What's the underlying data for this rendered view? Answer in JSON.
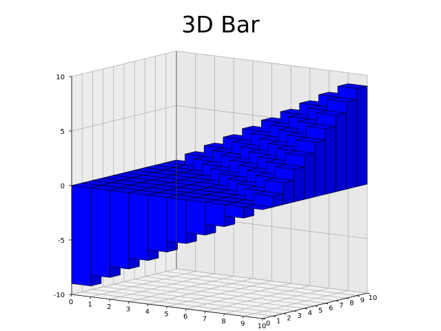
{
  "chart_data": {
    "type": "bar3d",
    "title": "3D Bar",
    "x_ticks": [
      "0",
      "1",
      "2",
      "3",
      "4",
      "5",
      "6",
      "7",
      "8",
      "9",
      "10"
    ],
    "y_ticks": [
      "0",
      "1",
      "2",
      "3",
      "4",
      "5",
      "6",
      "7",
      "8",
      "9",
      "10"
    ],
    "z_ticks": [
      "-10",
      "-5",
      "0",
      "5",
      "10"
    ],
    "xlim": [
      0,
      10
    ],
    "ylim": [
      0,
      10
    ],
    "zlim": [
      -10,
      10
    ],
    "grid": true,
    "bar_color": "#0000ff",
    "x": [
      0,
      1,
      2,
      3,
      4,
      5,
      6,
      7,
      8,
      9
    ],
    "y": [
      0,
      1,
      2,
      3,
      4,
      5,
      6,
      7,
      8,
      9
    ],
    "values": [
      [
        -9,
        -8,
        -7,
        -6,
        -5,
        -4,
        -3,
        -2,
        -1,
        0
      ],
      [
        -8,
        -7,
        -6,
        -5,
        -4,
        -3,
        -2,
        -1,
        0,
        1
      ],
      [
        -7,
        -6,
        -5,
        -4,
        -3,
        -2,
        -1,
        0,
        1,
        2
      ],
      [
        -6,
        -5,
        -4,
        -3,
        -2,
        -1,
        0,
        1,
        2,
        3
      ],
      [
        -5,
        -4,
        -3,
        -2,
        -1,
        0,
        1,
        2,
        3,
        4
      ],
      [
        -4,
        -3,
        -2,
        -1,
        0,
        1,
        2,
        3,
        4,
        5
      ],
      [
        -3,
        -2,
        -1,
        0,
        1,
        2,
        3,
        4,
        5,
        6
      ],
      [
        -2,
        -1,
        0,
        1,
        2,
        3,
        4,
        5,
        6,
        7
      ],
      [
        -1,
        0,
        1,
        2,
        3,
        4,
        5,
        6,
        7,
        8
      ],
      [
        0,
        1,
        2,
        3,
        4,
        5,
        6,
        7,
        8,
        9
      ]
    ]
  }
}
